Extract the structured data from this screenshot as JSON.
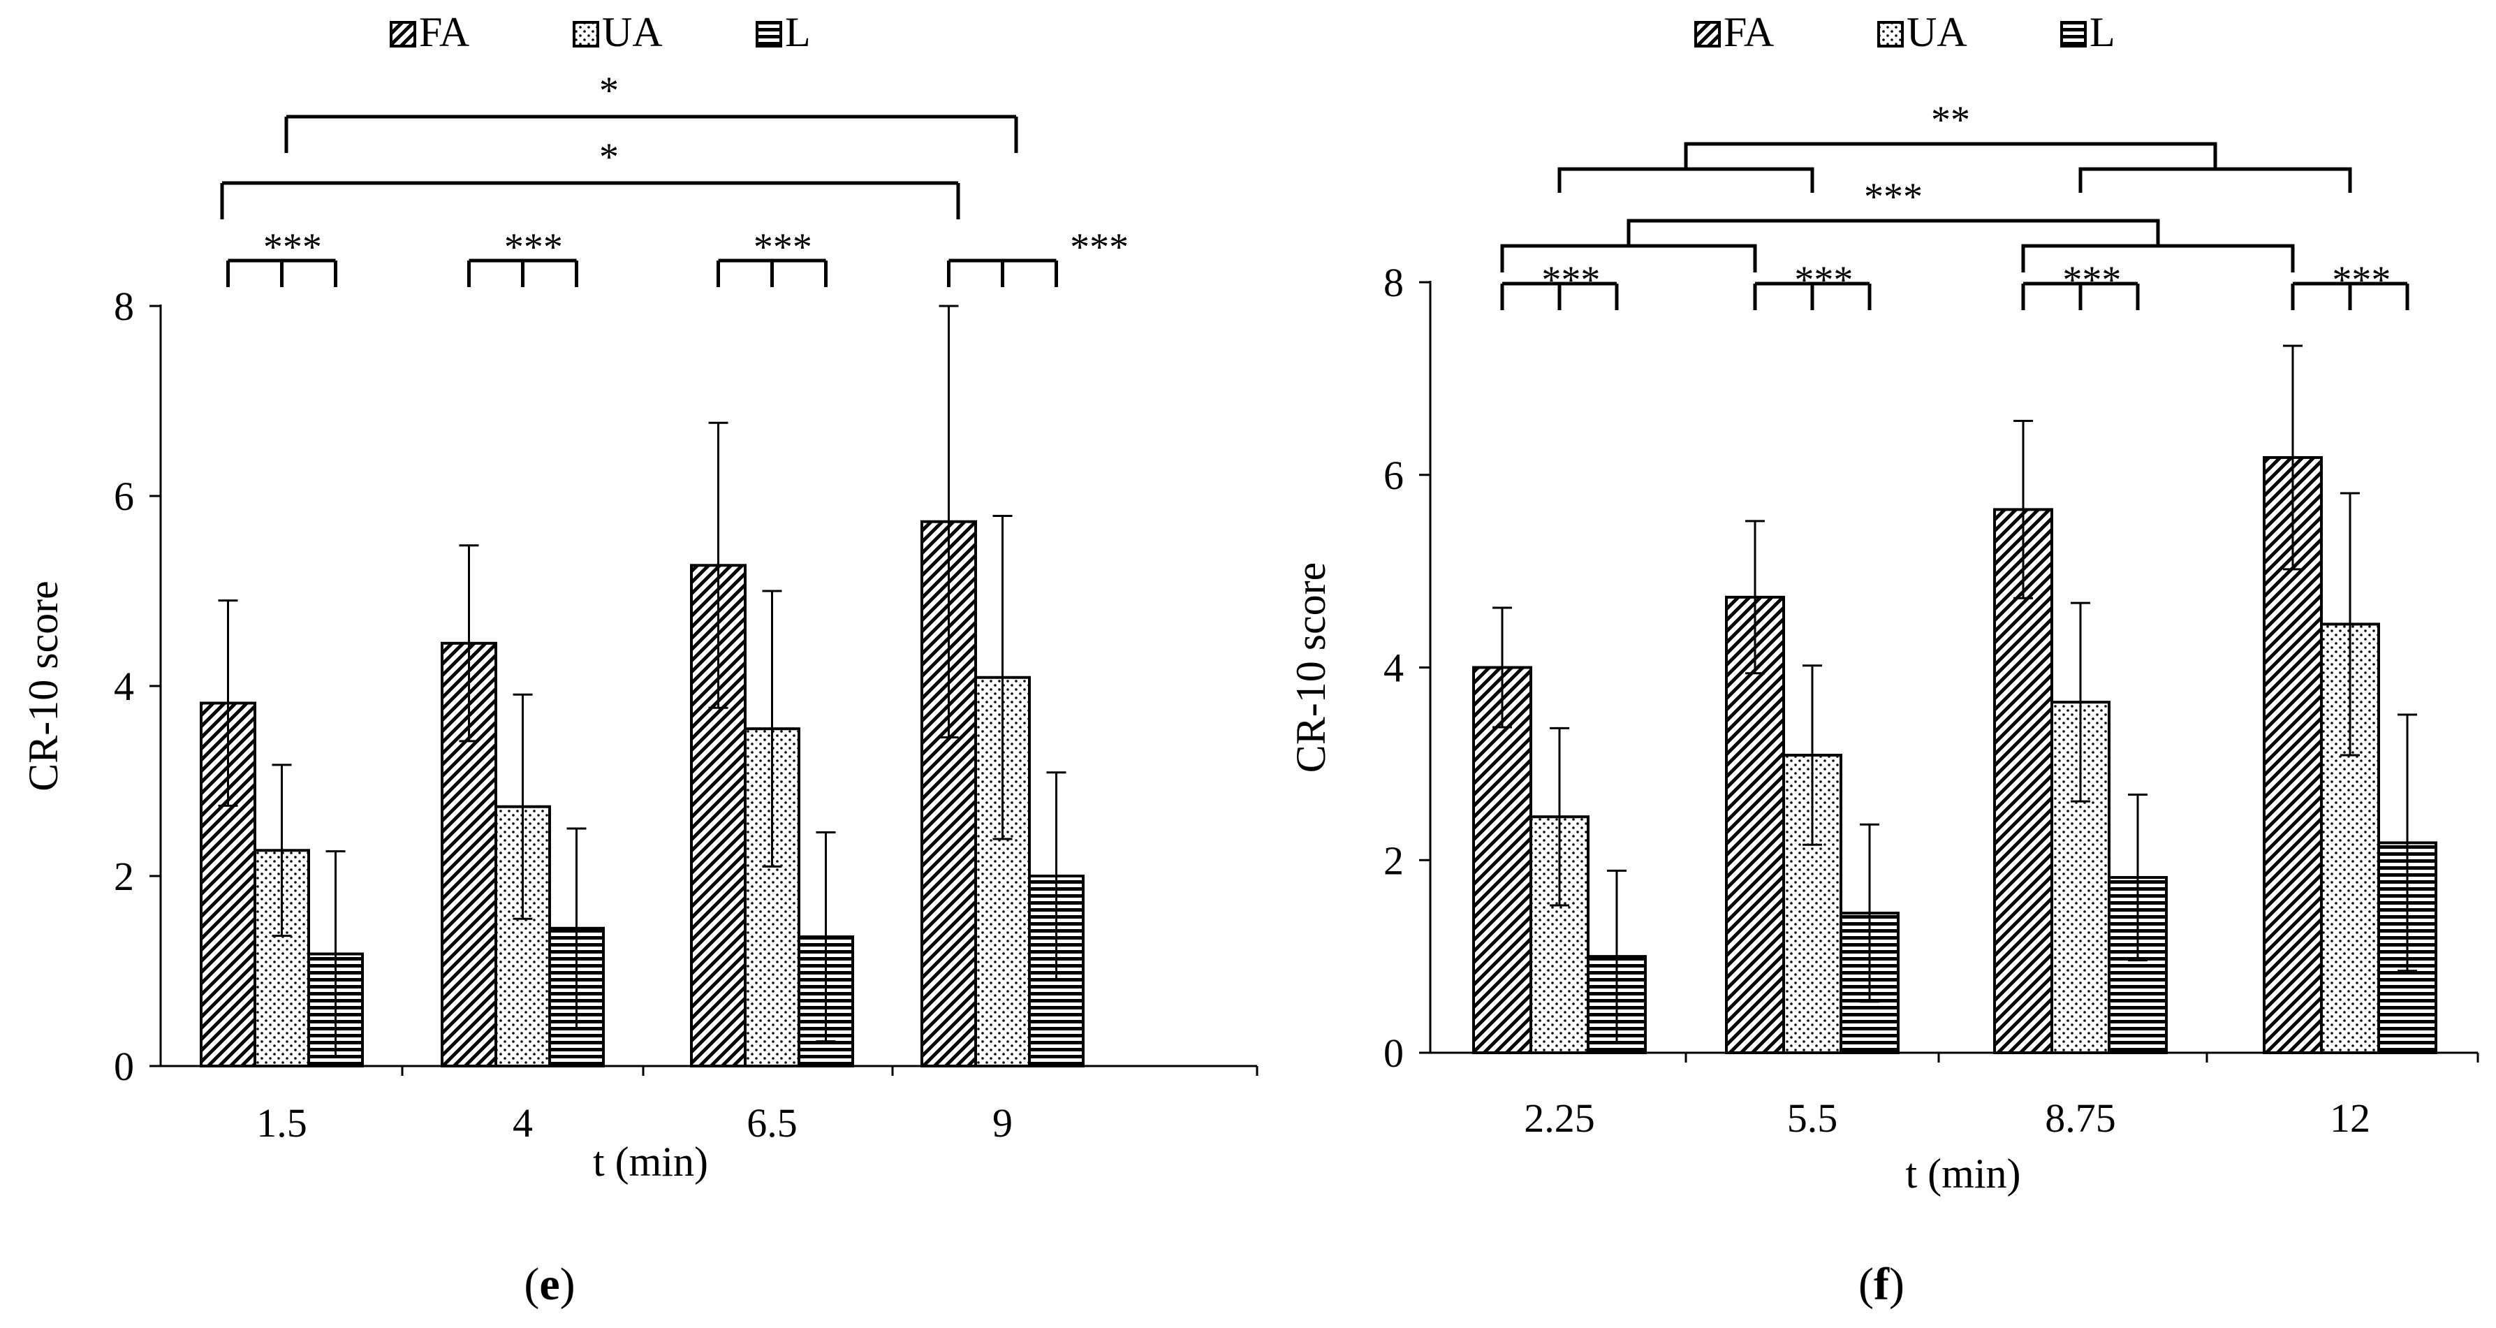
{
  "chart_data": [
    {
      "type": "bar",
      "panel_label": "e",
      "categories": [
        "1.5",
        "4",
        "6.5",
        "9"
      ],
      "xlabel": "t (min)",
      "ylabel": "CR-10 score",
      "ylim": [
        0,
        8
      ],
      "yticks": [
        "0",
        "2",
        "4",
        "6",
        "8"
      ],
      "grid": false,
      "legend": [
        "FA",
        "UA",
        "L"
      ],
      "series": [
        {
          "name": "FA",
          "values": [
            3.82,
            4.45,
            5.27,
            5.73
          ],
          "error": [
            1.08,
            1.03,
            1.5,
            2.27
          ]
        },
        {
          "name": "UA",
          "values": [
            2.27,
            2.73,
            3.55,
            4.09
          ],
          "error": [
            0.9,
            1.18,
            1.45,
            1.7
          ]
        },
        {
          "name": "L",
          "values": [
            1.18,
            1.45,
            1.36,
            2.0
          ],
          "error": [
            1.08,
            1.05,
            1.1,
            1.09
          ]
        }
      ],
      "within_group_significance": [
        "***",
        "***",
        "***",
        "***"
      ],
      "between_group_significance": [
        {
          "label": "*",
          "from": "1.5",
          "to": "9"
        },
        {
          "label": "*",
          "from": "1.5",
          "to": "9"
        }
      ]
    },
    {
      "type": "bar",
      "panel_label": "f",
      "categories": [
        "2.25",
        "5.5",
        "8.75",
        "12"
      ],
      "xlabel": "t (min)",
      "ylabel": "CR-10 score",
      "ylim": [
        0,
        8
      ],
      "yticks": [
        "0",
        "2",
        "4",
        "6",
        "8"
      ],
      "grid": false,
      "legend": [
        "FA",
        "UA",
        "L"
      ],
      "series": [
        {
          "name": "FA",
          "values": [
            4.0,
            4.73,
            5.64,
            6.18
          ],
          "error": [
            0.62,
            0.79,
            0.92,
            1.16
          ]
        },
        {
          "name": "UA",
          "values": [
            2.45,
            3.09,
            3.64,
            4.45
          ],
          "error": [
            0.92,
            0.93,
            1.03,
            1.36
          ]
        },
        {
          "name": "L",
          "values": [
            1.0,
            1.45,
            1.82,
            2.18
          ],
          "error": [
            0.89,
            0.92,
            0.86,
            1.33
          ]
        }
      ],
      "within_group_significance": [
        "***",
        "***",
        "***",
        "***"
      ],
      "between_group_significance": [
        {
          "label": "**",
          "from": "2.25-5.5",
          "to": "8.75-12"
        },
        {
          "label": "***",
          "from": "2.25-5.5",
          "to": "8.75-12"
        }
      ]
    }
  ]
}
